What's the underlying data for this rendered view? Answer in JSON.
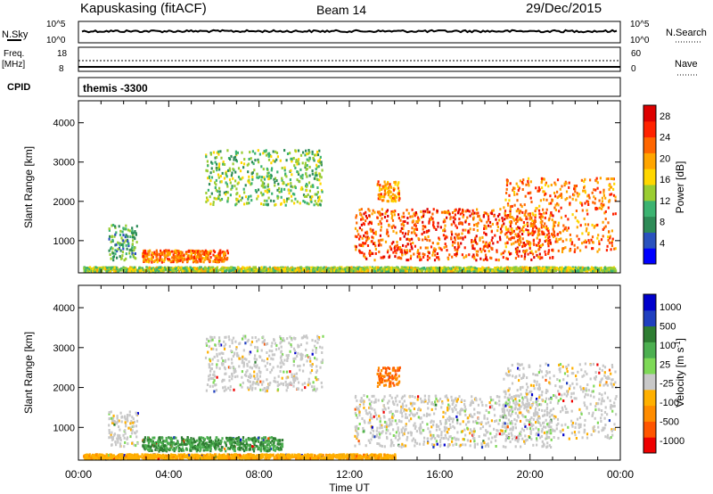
{
  "header": {
    "station": "Kapuskasing (fitACF)",
    "beam": "Beam 14",
    "date": "29/Dec/2015"
  },
  "top_panels": {
    "nsky_label": "N.Sky",
    "nsky_ticks": [
      "10^5",
      "10^0"
    ],
    "nsearch_label": "N.Search",
    "nsearch_ticks": [
      "10^5",
      "10^0"
    ],
    "freq_label": "Freq.",
    "freq_unit": "[MHz]",
    "freq_ticks": [
      "18",
      "8"
    ],
    "nave_label": "Nave",
    "nave_ticks": [
      "60",
      "0"
    ],
    "cpid_label": "CPID",
    "cpid_value": "themis -3300"
  },
  "colors": {
    "power_scale": [
      "#0000ff",
      "#2a52be",
      "#2e8b57",
      "#3cb371",
      "#9acd32",
      "#ffd700",
      "#ffa500",
      "#ff6600",
      "#ff2200",
      "#dd0000"
    ],
    "velocity_scale": [
      "#0000cc",
      "#1f3fbf",
      "#2e7d32",
      "#4caf50",
      "#7ed957",
      "#c8c8c8",
      "#ffb000",
      "#ff8c00",
      "#ff5500",
      "#ee0000"
    ]
  },
  "chart_data": [
    {
      "type": "heatmap",
      "title": "",
      "xlabel": "Time UT",
      "ylabel": "Slant Range [km]",
      "xticks": [
        "00:00",
        "04:00",
        "08:00",
        "12:00",
        "16:00",
        "20:00",
        "00:00"
      ],
      "xlim": [
        0,
        24
      ],
      "yticks": [
        "1000",
        "2000",
        "3000",
        "4000"
      ],
      "ylim": [
        180,
        4560
      ],
      "colorbar_label": "Power [dB]",
      "colorbar_ticks": [
        "4",
        "8",
        "12",
        "16",
        "20",
        "24",
        "28"
      ],
      "colorbar_range": [
        0,
        30
      ],
      "regions": [
        {
          "t0": 1.3,
          "t1": 2.6,
          "r0": 500,
          "r1": 1400,
          "level": 10
        },
        {
          "t0": 2.8,
          "t1": 6.6,
          "r0": 450,
          "r1": 750,
          "level": 22
        },
        {
          "t0": 5.6,
          "t1": 10.8,
          "r0": 1900,
          "r1": 3300,
          "level": 12
        },
        {
          "t0": 12.2,
          "t1": 21.0,
          "r0": 500,
          "r1": 1800,
          "level": 24
        },
        {
          "t0": 13.2,
          "t1": 14.2,
          "r0": 2000,
          "r1": 2500,
          "level": 20
        },
        {
          "t0": 18.8,
          "t1": 23.8,
          "r0": 700,
          "r1": 2600,
          "level": 22
        },
        {
          "t0": 0.2,
          "t1": 23.8,
          "r0": 200,
          "r1": 320,
          "level": 14
        }
      ]
    },
    {
      "type": "heatmap",
      "title": "",
      "xlabel": "Time UT",
      "ylabel": "Slant Range [km]",
      "xticks": [
        "00:00",
        "04:00",
        "08:00",
        "12:00",
        "16:00",
        "20:00",
        "00:00"
      ],
      "xlim": [
        0,
        24
      ],
      "yticks": [
        "1000",
        "2000",
        "3000",
        "4000"
      ],
      "ylim": [
        180,
        4560
      ],
      "colorbar_label": "Velocity [m s^-1]",
      "colorbar_ticks": [
        "1000",
        "500",
        "100",
        "25",
        "-25",
        "-100",
        "-500",
        "-1000"
      ],
      "regions": [
        {
          "t0": 1.3,
          "t1": 2.6,
          "r0": 500,
          "r1": 1400,
          "level": 0
        },
        {
          "t0": 2.8,
          "t1": 9.0,
          "r0": 400,
          "r1": 750,
          "level": 100
        },
        {
          "t0": 5.6,
          "t1": 10.8,
          "r0": 1900,
          "r1": 3300,
          "level": 0
        },
        {
          "t0": 12.2,
          "t1": 21.0,
          "r0": 500,
          "r1": 1800,
          "level": 0
        },
        {
          "t0": 13.2,
          "t1": 14.2,
          "r0": 2000,
          "r1": 2500,
          "level": -200
        },
        {
          "t0": 18.8,
          "t1": 23.8,
          "r0": 700,
          "r1": 2600,
          "level": 0
        },
        {
          "t0": 0.2,
          "t1": 14.0,
          "r0": 200,
          "r1": 320,
          "level": -80
        }
      ]
    }
  ]
}
